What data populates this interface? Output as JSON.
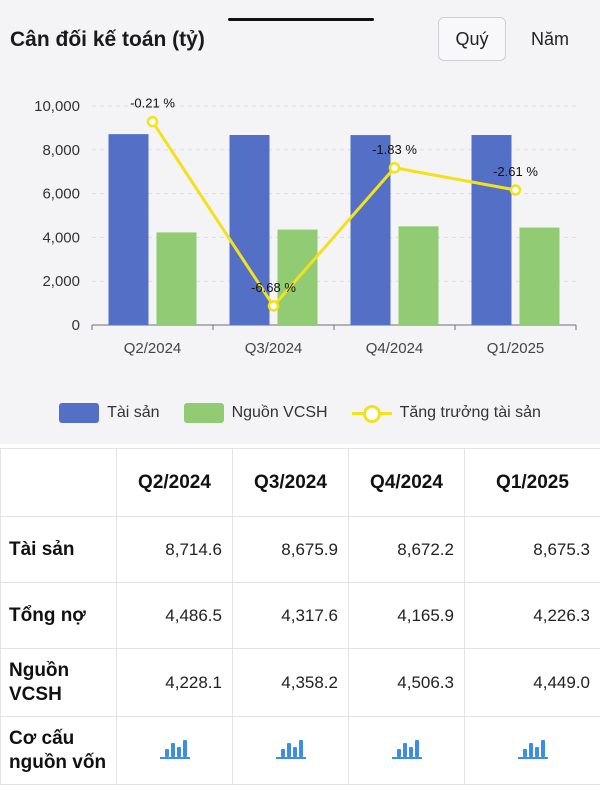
{
  "header": {
    "title": "Cân đối kế toán (tỷ)",
    "tab_quarter": "Quý",
    "tab_year": "Năm"
  },
  "chart_data": {
    "type": "bar",
    "categories": [
      "Q2/2024",
      "Q3/2024",
      "Q4/2024",
      "Q1/2025"
    ],
    "ylim": [
      0,
      10000
    ],
    "yticks": [
      "0",
      "2,000",
      "4,000",
      "6,000",
      "8,000",
      "10,000"
    ],
    "series": [
      {
        "name": "Tài sản",
        "type": "bar",
        "color": "#5470c6",
        "values": [
          8714.6,
          8675.9,
          8672.2,
          8675.3
        ]
      },
      {
        "name": "Nguồn VCSH",
        "type": "bar",
        "color": "#91cc75",
        "values": [
          4228.1,
          4358.2,
          4506.3,
          4449.0
        ]
      },
      {
        "name": "Tăng trưởng tài sản",
        "type": "line",
        "color": "#f1e21b",
        "values": [
          -0.21,
          -6.68,
          -1.83,
          -2.61
        ],
        "labels": [
          "-0.21 %",
          "-6.68 %",
          "-1.83 %",
          "-2.61 %"
        ]
      }
    ],
    "grid": true,
    "legend_position": "bottom"
  },
  "table": {
    "columns": [
      "Q2/2024",
      "Q3/2024",
      "Q4/2024",
      "Q1/2025"
    ],
    "rows": [
      {
        "label": "Tài sản",
        "values": [
          "8,714.6",
          "8,675.9",
          "8,672.2",
          "8,675.3"
        ]
      },
      {
        "label": "Tổng nợ",
        "values": [
          "4,486.5",
          "4,317.6",
          "4,165.9",
          "4,226.3"
        ]
      },
      {
        "label_line1": "Nguồn",
        "label_line2": "VCSH",
        "values": [
          "4,228.1",
          "4,358.2",
          "4,506.3",
          "4,449.0"
        ]
      },
      {
        "label_line1": "Cơ cấu",
        "label_line2": "nguồn vốn",
        "icon": "bar-chart-icon"
      }
    ]
  }
}
